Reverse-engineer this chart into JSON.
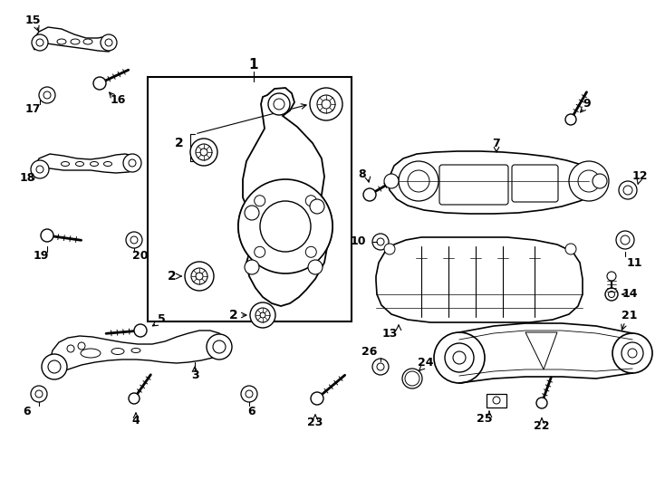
{
  "bg": "#ffffff",
  "lc": "#000000",
  "fw": 7.34,
  "fh": 5.4,
  "dpi": 100
}
